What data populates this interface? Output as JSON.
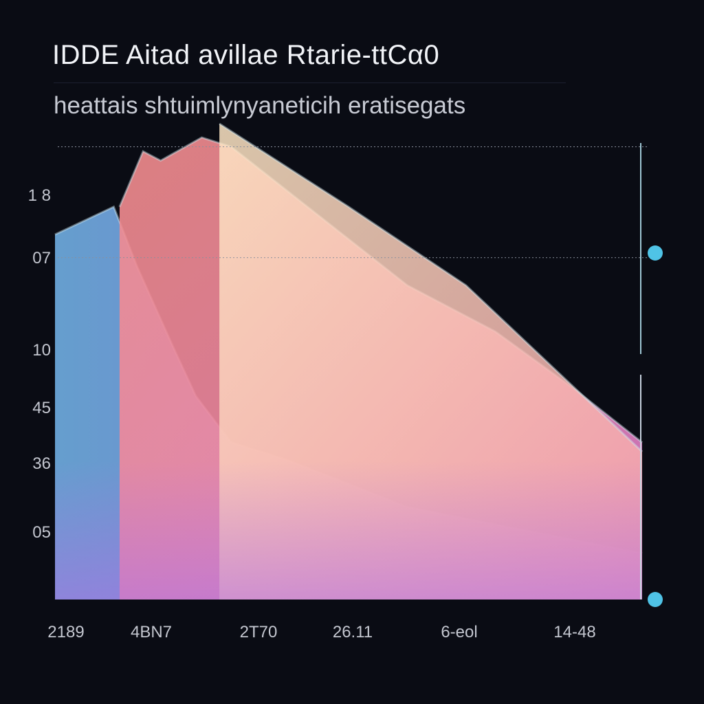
{
  "chart_data": {
    "type": "area",
    "title": "IDDE  Aitad avillae Rtarie-ttCα0",
    "subtitle": "heattais  shtuimlynyaneticih eratisegats",
    "y_ticks": [
      "1 8",
      "07",
      "10",
      "45",
      "36",
      "05"
    ],
    "x_ticks": [
      "2189",
      "4BN7",
      "2T70",
      "26.11",
      "6-eol",
      "14-48"
    ],
    "ylim": [
      0,
      1
    ],
    "xlim": [
      0,
      1
    ],
    "grid": false,
    "series": [
      {
        "color": "#6a9fd6",
        "x": [
          0.0,
          0.1,
          0.14,
          0.2,
          0.24,
          0.3,
          0.4,
          0.6,
          0.8,
          1.0
        ],
        "y": [
          0.79,
          0.85,
          0.72,
          0.55,
          0.44,
          0.34,
          0.3,
          0.2,
          0.15,
          0.1
        ]
      },
      {
        "color": "#f08a9a",
        "x": [
          0.11,
          0.15,
          0.18,
          0.25,
          0.3,
          0.38,
          0.48,
          0.6,
          0.75,
          0.88,
          1.0
        ],
        "y": [
          0.85,
          0.97,
          0.95,
          1.0,
          0.98,
          0.9,
          0.8,
          0.68,
          0.58,
          0.46,
          0.34
        ]
      },
      {
        "color": "#fbd2a8",
        "x": [
          0.28,
          0.5,
          0.7,
          0.85,
          1.0
        ],
        "y": [
          1.03,
          0.85,
          0.68,
          0.5,
          0.32
        ]
      }
    ],
    "reference_lines": [
      {
        "y": 0.98,
        "style": "dotted"
      },
      {
        "y": 0.74,
        "style": "dotted"
      }
    ],
    "markers": [
      {
        "y": 0.75,
        "color": "#4fc3e6"
      },
      {
        "y": 0.0,
        "color": "#4fc3e6"
      }
    ]
  }
}
